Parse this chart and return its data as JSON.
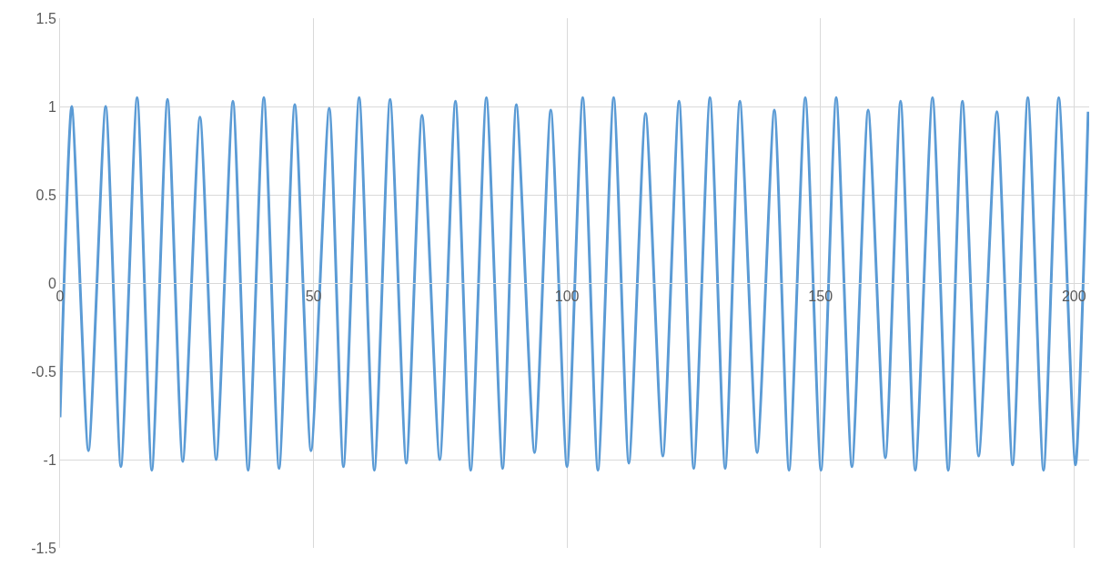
{
  "chart_data": {
    "type": "line",
    "x": [
      0,
      2.3,
      5.6,
      9.0,
      12.0,
      15.2,
      18.1,
      21.2,
      24.2,
      27.6,
      30.8,
      34.1,
      37.1,
      40.2,
      43.2,
      46.3,
      49.5,
      53.1,
      55.9,
      59.0,
      62.0,
      65.1,
      68.3,
      71.4,
      74.9,
      78.0,
      81.0,
      84.1,
      87.3,
      90.0,
      93.6,
      96.8,
      100.0,
      103.1,
      106.1,
      109.2,
      112.2,
      115.5,
      118.9,
      122.1,
      125.0,
      128.2,
      131.2,
      134.1,
      137.5,
      140.9,
      143.8,
      147.0,
      150.1,
      153.1,
      156.2,
      159.4,
      162.8,
      165.8,
      168.7,
      172.1,
      175.2,
      178.0,
      181.2,
      184.8,
      187.9,
      190.9,
      194.0,
      197.0,
      200.3,
      202.8
    ],
    "series": [
      {
        "color": "#5b9bd5",
        "values": [
          -0.76,
          1.0,
          -0.95,
          1.0,
          -1.04,
          1.05,
          -1.06,
          1.04,
          -1.01,
          0.94,
          -1.0,
          1.03,
          -1.06,
          1.05,
          -1.05,
          1.01,
          -0.95,
          0.99,
          -1.04,
          1.05,
          -1.06,
          1.04,
          -1.02,
          0.95,
          -1.0,
          1.03,
          -1.06,
          1.05,
          -1.05,
          1.01,
          -0.96,
          0.98,
          -1.04,
          1.05,
          -1.06,
          1.05,
          -1.02,
          0.96,
          -0.98,
          1.03,
          -1.05,
          1.05,
          -1.05,
          1.03,
          -0.96,
          0.98,
          -1.06,
          1.05,
          -1.06,
          1.05,
          -1.04,
          0.98,
          -0.99,
          1.03,
          -1.06,
          1.05,
          -1.06,
          1.03,
          -0.98,
          0.97,
          -1.03,
          1.05,
          -1.06,
          1.05,
          -1.03,
          0.97
        ]
      }
    ],
    "xlim": [
      0,
      203
    ],
    "xticks": [
      0,
      50,
      100,
      150,
      200
    ],
    "ylim": [
      -1.5,
      1.5
    ],
    "yticks": [
      -1.5,
      -1,
      -0.5,
      0,
      0.5,
      1,
      1.5
    ],
    "grid": true,
    "marker": "none",
    "line_style": "solid"
  }
}
